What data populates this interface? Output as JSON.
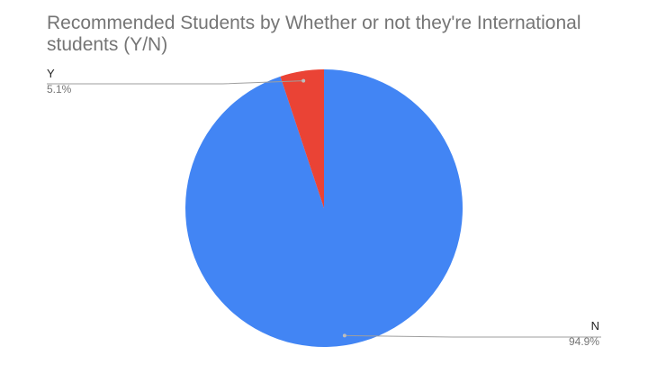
{
  "chart_data": {
    "type": "pie",
    "title": "Recommended Students by Whether or not they're International students (Y/N)",
    "slices": [
      {
        "label": "N",
        "value": 94.9,
        "percent_label": "94.9%",
        "color": "#4285f4"
      },
      {
        "label": "Y",
        "value": 5.1,
        "percent_label": "5.1%",
        "color": "#ea4335"
      }
    ],
    "legend": "none",
    "start_angle": "12 o'clock",
    "direction": "clockwise",
    "label_style": "callout lines with category and percent"
  }
}
